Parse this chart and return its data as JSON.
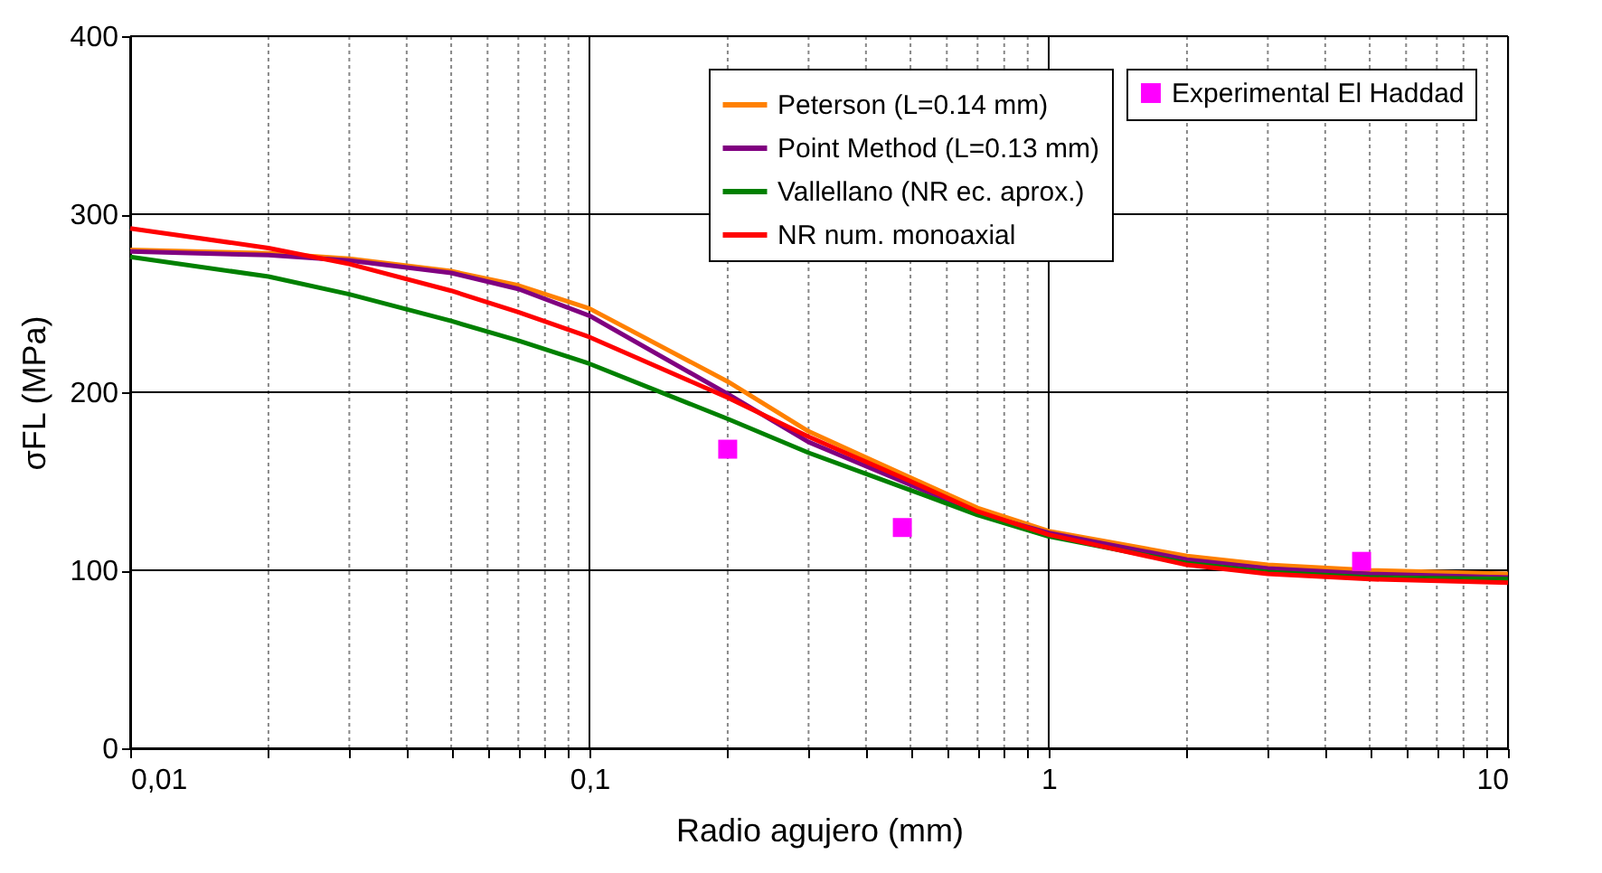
{
  "chart_data": {
    "type": "line",
    "xlabel": "Radio agujero (mm)",
    "ylabel": "σFL (MPa)",
    "log": "x",
    "xlim": [
      0.01,
      10
    ],
    "ylim": [
      0,
      400
    ],
    "xticks": [
      {
        "value": 0.01,
        "label": "0,01"
      },
      {
        "value": 0.02,
        "label": null
      },
      {
        "value": 0.03,
        "label": null
      },
      {
        "value": 0.04,
        "label": null
      },
      {
        "value": 0.05,
        "label": null
      },
      {
        "value": 0.06,
        "label": null
      },
      {
        "value": 0.07,
        "label": null
      },
      {
        "value": 0.08,
        "label": null
      },
      {
        "value": 0.09,
        "label": null
      },
      {
        "value": 0.1,
        "label": "0,1"
      },
      {
        "value": 0.2,
        "label": null
      },
      {
        "value": 0.3,
        "label": null
      },
      {
        "value": 0.4,
        "label": null
      },
      {
        "value": 0.5,
        "label": null
      },
      {
        "value": 0.6,
        "label": null
      },
      {
        "value": 0.7,
        "label": null
      },
      {
        "value": 0.8,
        "label": null
      },
      {
        "value": 0.9,
        "label": null
      },
      1,
      {
        "value": 2,
        "label": null
      },
      {
        "value": 3,
        "label": null
      },
      {
        "value": 4,
        "label": null
      },
      {
        "value": 5,
        "label": null
      },
      {
        "value": 6,
        "label": null
      },
      {
        "value": 7,
        "label": null
      },
      {
        "value": 8,
        "label": null
      },
      {
        "value": 9,
        "label": null
      },
      10
    ],
    "yticks": [
      0,
      100,
      200,
      300,
      400
    ],
    "grid": true,
    "legend": "top right",
    "line_style": "solid",
    "series": [
      {
        "name": "Experimental El Haddad",
        "type": "scatter",
        "marker": "square",
        "color": "#ff00ff",
        "x": [
          0.2,
          0.48,
          4.8
        ],
        "values": [
          168,
          124,
          105
        ]
      },
      {
        "name": "Peterson (L=0.14 mm)",
        "color": "#ff8000",
        "x": [
          0.01,
          0.02,
          0.03,
          0.05,
          0.07,
          0.1,
          0.2,
          0.3,
          0.5,
          0.7,
          1,
          2,
          3,
          5,
          10
        ],
        "values": [
          280,
          278,
          275,
          268,
          260,
          247,
          206,
          178,
          152,
          135,
          122,
          108,
          103,
          100,
          98
        ]
      },
      {
        "name": "Point Method (L=0.13 mm)",
        "color": "#800080",
        "x": [
          0.01,
          0.02,
          0.03,
          0.05,
          0.07,
          0.1,
          0.2,
          0.3,
          0.5,
          0.7,
          1,
          2,
          3,
          5,
          10
        ],
        "values": [
          279,
          277,
          274,
          267,
          258,
          243,
          199,
          172,
          148,
          132,
          121,
          106,
          101,
          98,
          96
        ]
      },
      {
        "name": "Vallellano (NR ec. aprox.)",
        "color": "#008000",
        "x": [
          0.01,
          0.02,
          0.03,
          0.05,
          0.07,
          0.1,
          0.2,
          0.3,
          0.5,
          0.7,
          1,
          2,
          3,
          5,
          10
        ],
        "values": [
          276,
          265,
          255,
          240,
          229,
          216,
          185,
          166,
          145,
          131,
          119,
          104,
          99,
          96,
          95
        ]
      },
      {
        "name": "NR num. monoaxial",
        "color": "#ff0000",
        "x": [
          0.01,
          0.02,
          0.03,
          0.05,
          0.07,
          0.1,
          0.2,
          0.3,
          0.5,
          0.7,
          1,
          2,
          3,
          5,
          10
        ],
        "values": [
          292,
          281,
          272,
          257,
          245,
          231,
          197,
          175,
          150,
          133,
          120,
          103,
          98,
          95,
          93
        ]
      }
    ]
  }
}
